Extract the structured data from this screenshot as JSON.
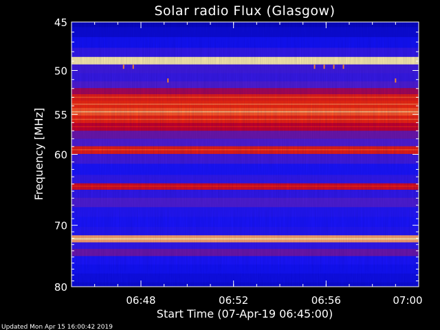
{
  "chart_data": {
    "type": "heatmap",
    "title": "Solar radio Flux (Glasgow)",
    "xlabel": "Start Time (07-Apr-19 06:45:00)",
    "ylabel": "Frequency [MHz]",
    "x_range": [
      "06:45:00",
      "07:00:00"
    ],
    "ylim": [
      45,
      80
    ],
    "y_scale": "log",
    "y_inverted": true,
    "x_ticks": [
      "06:48",
      "06:52",
      "06:56",
      "07:00"
    ],
    "y_ticks": [
      45,
      50,
      55,
      60,
      70,
      80
    ],
    "grid": false,
    "colormap": [
      "#0000c8",
      "#1a1aff",
      "#4b1fd6",
      "#c8001e",
      "#ff3c00",
      "#ffe8a0"
    ],
    "frequency_bands": [
      {
        "freq_mhz": 45.0,
        "level": 0.08
      },
      {
        "freq_mhz": 46.0,
        "level": 0.12
      },
      {
        "freq_mhz": 47.0,
        "level": 0.18
      },
      {
        "freq_mhz": 48.2,
        "level": 0.3
      },
      {
        "freq_mhz": 48.9,
        "level": 1.0
      },
      {
        "freq_mhz": 49.8,
        "level": 0.35
      },
      {
        "freq_mhz": 50.8,
        "level": 0.32
      },
      {
        "freq_mhz": 51.6,
        "level": 0.4
      },
      {
        "freq_mhz": 52.3,
        "level": 0.55
      },
      {
        "freq_mhz": 53.0,
        "level": 0.72
      },
      {
        "freq_mhz": 53.8,
        "level": 0.76
      },
      {
        "freq_mhz": 54.7,
        "level": 0.84
      },
      {
        "freq_mhz": 55.6,
        "level": 0.74
      },
      {
        "freq_mhz": 56.5,
        "level": 0.6
      },
      {
        "freq_mhz": 57.5,
        "level": 0.45
      },
      {
        "freq_mhz": 58.5,
        "level": 0.4
      },
      {
        "freq_mhz": 59.4,
        "level": 0.72
      },
      {
        "freq_mhz": 60.5,
        "level": 0.35
      },
      {
        "freq_mhz": 62.0,
        "level": 0.22
      },
      {
        "freq_mhz": 63.5,
        "level": 0.3
      },
      {
        "freq_mhz": 64.3,
        "level": 0.65
      },
      {
        "freq_mhz": 65.3,
        "level": 0.3
      },
      {
        "freq_mhz": 66.6,
        "level": 0.4
      },
      {
        "freq_mhz": 68.0,
        "level": 0.25
      },
      {
        "freq_mhz": 69.5,
        "level": 0.22
      },
      {
        "freq_mhz": 71.0,
        "level": 0.25
      },
      {
        "freq_mhz": 72.1,
        "level": 0.92
      },
      {
        "freq_mhz": 73.2,
        "level": 0.3
      },
      {
        "freq_mhz": 74.2,
        "level": 0.45
      },
      {
        "freq_mhz": 75.5,
        "level": 0.22
      },
      {
        "freq_mhz": 77.0,
        "level": 0.18
      },
      {
        "freq_mhz": 78.5,
        "level": 0.15
      },
      {
        "freq_mhz": 80.0,
        "level": 0.12
      }
    ],
    "bursts": [
      {
        "time": "06:47:15",
        "freq_mhz": 49.6
      },
      {
        "time": "06:47:40",
        "freq_mhz": 49.6
      },
      {
        "time": "06:49:10",
        "freq_mhz": 51.1
      },
      {
        "time": "06:55:30",
        "freq_mhz": 49.6
      },
      {
        "time": "06:55:55",
        "freq_mhz": 49.6
      },
      {
        "time": "06:56:20",
        "freq_mhz": 49.6
      },
      {
        "time": "06:56:45",
        "freq_mhz": 49.6
      },
      {
        "time": "06:59:00",
        "freq_mhz": 51.1
      }
    ]
  },
  "footer": {
    "updated": "Updated Mon Apr 15 16:00:42 2019"
  }
}
